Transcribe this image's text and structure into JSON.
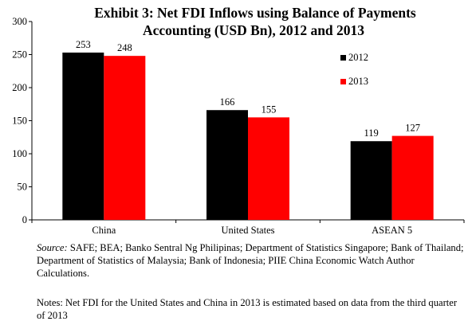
{
  "chart_data": {
    "type": "bar",
    "title_lines": [
      "Exhibit 3: Net FDI Inflows using Balance of Payments",
      "Accounting (USD Bn), 2012 and 2013"
    ],
    "categories": [
      "China",
      "United States",
      "ASEAN 5"
    ],
    "series": [
      {
        "name": "2012",
        "values": [
          253,
          166,
          119
        ],
        "color": "#000000"
      },
      {
        "name": "2013",
        "values": [
          248,
          155,
          127
        ],
        "color": "#ff0000"
      }
    ],
    "data_labels": [
      [
        "253",
        "166",
        "119"
      ],
      [
        "248",
        "155",
        "127"
      ]
    ],
    "ylim": [
      0,
      300
    ],
    "yticks": [
      0,
      50,
      100,
      150,
      200,
      250,
      300
    ],
    "xlabel": "",
    "ylabel": "",
    "grid": false,
    "legend_position": "right"
  },
  "source": {
    "label": "Source:",
    "text": " SAFE; BEA;  Banko Sentral Ng Philipinas; Department of Statistics Singapore; Bank of Thailand; Department of Statistics of Malaysia;  Bank of Indonesia; PIIE China Economic Watch Author Calculations."
  },
  "notes": {
    "text": "Notes: Net FDI for the United States and China in 2013 is estimated based on data from the third quarter of 2013"
  }
}
